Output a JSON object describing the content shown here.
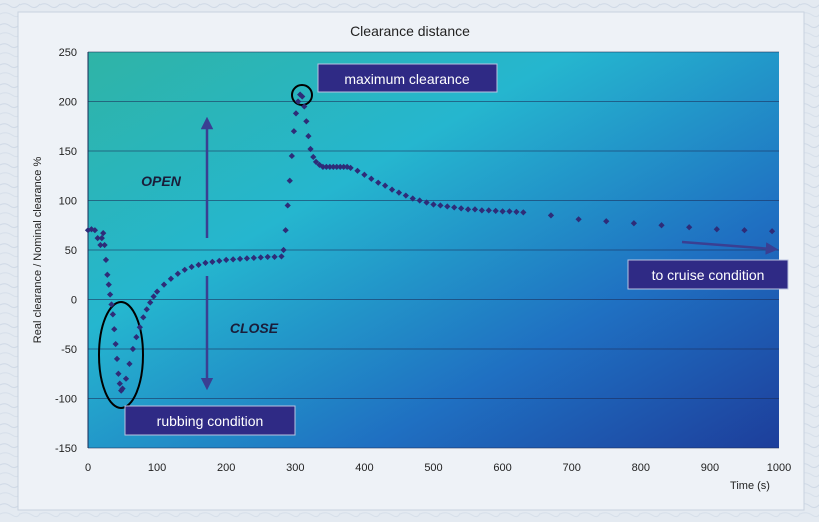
{
  "chart_data": {
    "type": "scatter",
    "title": "Clearance distance",
    "ylabel": "Real clearance / Nominal clearance %",
    "xlabel": "Time (s)",
    "xlim": [
      0,
      1000
    ],
    "ylim": [
      -150,
      250
    ],
    "xticks": [
      0,
      100,
      200,
      300,
      400,
      500,
      600,
      700,
      800,
      900,
      1000
    ],
    "yticks": [
      -150,
      -100,
      -50,
      0,
      50,
      100,
      150,
      200,
      250
    ],
    "grid": "horizontal",
    "series": [
      {
        "color": "#2e2c78",
        "points": [
          [
            0,
            70
          ],
          [
            5,
            71
          ],
          [
            10,
            70
          ],
          [
            14,
            62
          ],
          [
            18,
            55
          ],
          [
            20,
            62
          ],
          [
            22,
            67
          ],
          [
            24,
            55
          ],
          [
            26,
            40
          ],
          [
            28,
            25
          ],
          [
            30,
            15
          ],
          [
            32,
            5
          ],
          [
            34,
            -5
          ],
          [
            36,
            -15
          ],
          [
            38,
            -30
          ],
          [
            40,
            -45
          ],
          [
            42,
            -60
          ],
          [
            44,
            -75
          ],
          [
            46,
            -85
          ],
          [
            48,
            -92
          ],
          [
            50,
            -90
          ],
          [
            55,
            -80
          ],
          [
            60,
            -65
          ],
          [
            65,
            -50
          ],
          [
            70,
            -38
          ],
          [
            75,
            -28
          ],
          [
            80,
            -18
          ],
          [
            85,
            -10
          ],
          [
            90,
            -3
          ],
          [
            95,
            3
          ],
          [
            100,
            8
          ],
          [
            110,
            15
          ],
          [
            120,
            21
          ],
          [
            130,
            26
          ],
          [
            140,
            30
          ],
          [
            150,
            33
          ],
          [
            160,
            35
          ],
          [
            170,
            37
          ],
          [
            180,
            38
          ],
          [
            190,
            39
          ],
          [
            200,
            40
          ],
          [
            210,
            40.5
          ],
          [
            220,
            41
          ],
          [
            230,
            41.5
          ],
          [
            240,
            42
          ],
          [
            250,
            42.5
          ],
          [
            260,
            43
          ],
          [
            270,
            43
          ],
          [
            280,
            43.5
          ],
          [
            283,
            50
          ],
          [
            286,
            70
          ],
          [
            289,
            95
          ],
          [
            292,
            120
          ],
          [
            295,
            145
          ],
          [
            298,
            170
          ],
          [
            301,
            188
          ],
          [
            304,
            200
          ],
          [
            307,
            207
          ],
          [
            310,
            205
          ],
          [
            313,
            195
          ],
          [
            316,
            180
          ],
          [
            319,
            165
          ],
          [
            322,
            152
          ],
          [
            326,
            144
          ],
          [
            330,
            139
          ],
          [
            335,
            136
          ],
          [
            340,
            134
          ],
          [
            345,
            134
          ],
          [
            350,
            134
          ],
          [
            355,
            134
          ],
          [
            360,
            134
          ],
          [
            365,
            134
          ],
          [
            370,
            134
          ],
          [
            375,
            134
          ],
          [
            380,
            133
          ],
          [
            390,
            130
          ],
          [
            400,
            126
          ],
          [
            410,
            122
          ],
          [
            420,
            118
          ],
          [
            430,
            115
          ],
          [
            440,
            111
          ],
          [
            450,
            108
          ],
          [
            460,
            105
          ],
          [
            470,
            102
          ],
          [
            480,
            100
          ],
          [
            490,
            98
          ],
          [
            500,
            96
          ],
          [
            510,
            95
          ],
          [
            520,
            94
          ],
          [
            530,
            93
          ],
          [
            540,
            92
          ],
          [
            550,
            91
          ],
          [
            560,
            91
          ],
          [
            570,
            90
          ],
          [
            580,
            90
          ],
          [
            590,
            89.5
          ],
          [
            600,
            89
          ],
          [
            610,
            89
          ],
          [
            620,
            88.5
          ],
          [
            630,
            88
          ],
          [
            670,
            85
          ],
          [
            710,
            81
          ],
          [
            750,
            79
          ],
          [
            790,
            77
          ],
          [
            830,
            75
          ],
          [
            870,
            73
          ],
          [
            910,
            71
          ],
          [
            950,
            70
          ],
          [
            990,
            69
          ]
        ]
      }
    ],
    "annotations": {
      "maximum_clearance": "maximum clearance",
      "rubbing_condition": "rubbing condition",
      "to_cruise_condition": "to cruise condition",
      "open": "OPEN",
      "close": "CLOSE"
    },
    "colors": {
      "point": "#2e2c78",
      "label_box": "#2f2a85",
      "arrow": "#3a3f92",
      "plot_gradient": [
        "#2fb4a6",
        "#25b6cf",
        "#1f70c2",
        "#1d3e9b"
      ]
    }
  }
}
